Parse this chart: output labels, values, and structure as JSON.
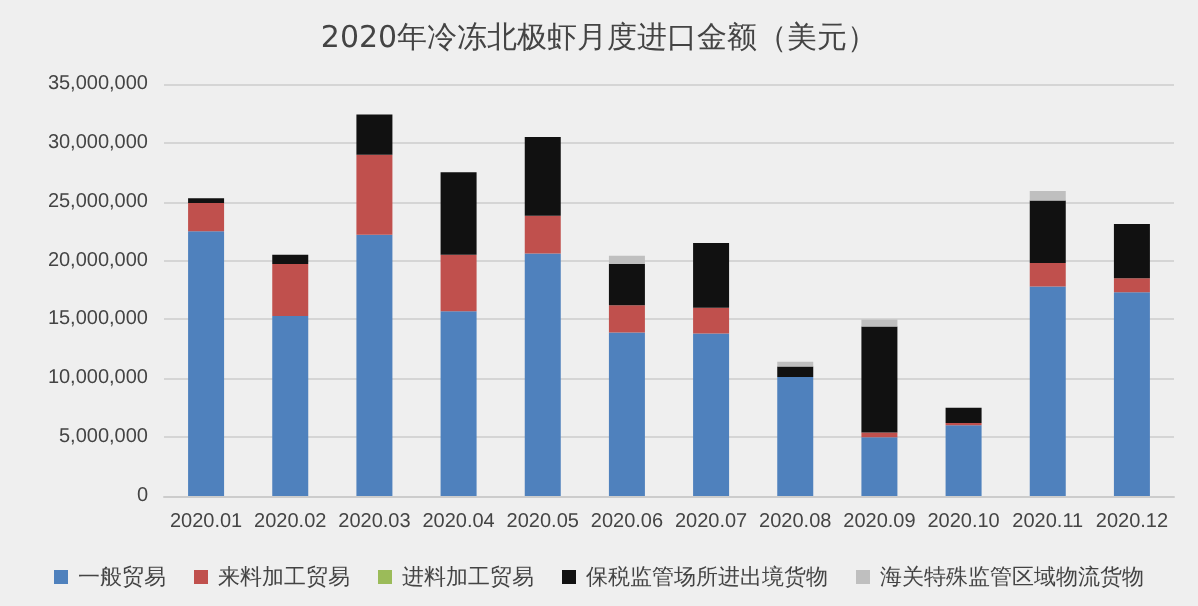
{
  "chart_data": {
    "type": "bar",
    "title": "2020年冷冻北极虾月度进口金额（美元）",
    "stacked": true,
    "categories": [
      "2020.01",
      "2020.02",
      "2020.03",
      "2020.04",
      "2020.05",
      "2020.06",
      "2020.07",
      "2020.08",
      "2020.09",
      "2020.10",
      "2020.11",
      "2020.12"
    ],
    "series": [
      {
        "name": "一般贸易",
        "color": "#4f81bd",
        "values": [
          22500000,
          15300000,
          22200000,
          15700000,
          20600000,
          13900000,
          13800000,
          10100000,
          5000000,
          6000000,
          17800000,
          17300000
        ]
      },
      {
        "name": "来料加工贸易",
        "color": "#c0504d",
        "values": [
          2400000,
          4400000,
          6800000,
          4800000,
          3200000,
          2300000,
          2200000,
          0,
          400000,
          200000,
          2000000,
          1200000
        ]
      },
      {
        "name": "进料加工贸易",
        "color": "#9bbb59",
        "values": [
          0,
          0,
          0,
          0,
          0,
          0,
          0,
          0,
          0,
          0,
          0,
          0
        ]
      },
      {
        "name": "保税监管场所进出境货物",
        "color": "#111111",
        "values": [
          400000,
          800000,
          3400000,
          7000000,
          6700000,
          3500000,
          5500000,
          900000,
          9000000,
          1300000,
          5300000,
          4600000
        ]
      },
      {
        "name": "海关特殊监管区域物流货物",
        "color": "#bfbfbf",
        "values": [
          0,
          0,
          0,
          0,
          0,
          700000,
          0,
          400000,
          600000,
          0,
          800000,
          0
        ]
      }
    ],
    "ylim": [
      0,
      35000000
    ],
    "yticks": [
      0,
      {
        "value": 5000000,
        "label": "5,000,000"
      },
      {
        "value": 10000000,
        "label": "10,000,000"
      },
      {
        "value": 15000000,
        "label": "15,000,000"
      },
      {
        "value": 20000000,
        "label": "20,000,000"
      },
      {
        "value": 25000000,
        "label": "25,000,000"
      },
      {
        "value": 30000000,
        "label": "30,000,000"
      },
      {
        "value": 35000000,
        "label": "35,000,000"
      }
    ],
    "grid": "y",
    "legend": "bottom"
  }
}
